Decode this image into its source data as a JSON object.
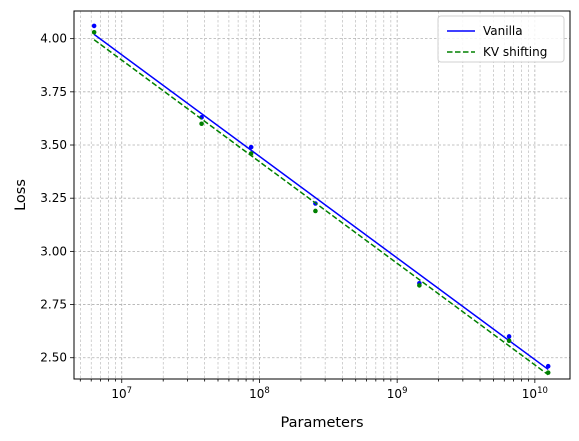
{
  "chart_data": {
    "type": "line",
    "title": "",
    "xlabel": "Parameters",
    "ylabel": "Loss",
    "xscale": "log",
    "xlim": [
      4500000,
      18000000000
    ],
    "ylim": [
      2.4,
      4.13
    ],
    "grid": "both-major-and-minor",
    "legend": "top-right",
    "x_ticks": [
      10000000,
      100000000,
      1000000000,
      10000000000
    ],
    "x_tick_labels": [
      {
        "base": "10",
        "exp": "7"
      },
      {
        "base": "10",
        "exp": "8"
      },
      {
        "base": "10",
        "exp": "9"
      },
      {
        "base": "10",
        "exp": "10"
      }
    ],
    "y_ticks": [
      2.5,
      2.75,
      3.0,
      3.25,
      3.5,
      3.75,
      4.0
    ],
    "y_tick_labels": [
      "2.50",
      "2.75",
      "3.00",
      "3.25",
      "3.50",
      "3.75",
      "4.00"
    ],
    "series": [
      {
        "name": "Vanilla",
        "color": "#0000ff",
        "style": "solid",
        "fit_x": [
          6300000,
          12500000000
        ],
        "fit_y": [
          4.02,
          2.445
        ],
        "points_x": [
          6300000,
          38000000,
          87000000,
          255000000,
          1450000000,
          6500000000,
          12500000000
        ],
        "points_y": [
          4.06,
          3.63,
          3.49,
          3.225,
          2.85,
          2.6,
          2.46
        ]
      },
      {
        "name": "KV shifting",
        "color": "#008000",
        "style": "dashed",
        "fit_x": [
          6300000,
          12500000000
        ],
        "fit_y": [
          3.995,
          2.42
        ],
        "points_x": [
          6300000,
          38000000,
          87000000,
          255000000,
          1450000000,
          6500000000,
          12500000000
        ],
        "points_y": [
          4.03,
          3.6,
          3.46,
          3.19,
          2.84,
          2.58,
          2.43
        ]
      }
    ]
  }
}
